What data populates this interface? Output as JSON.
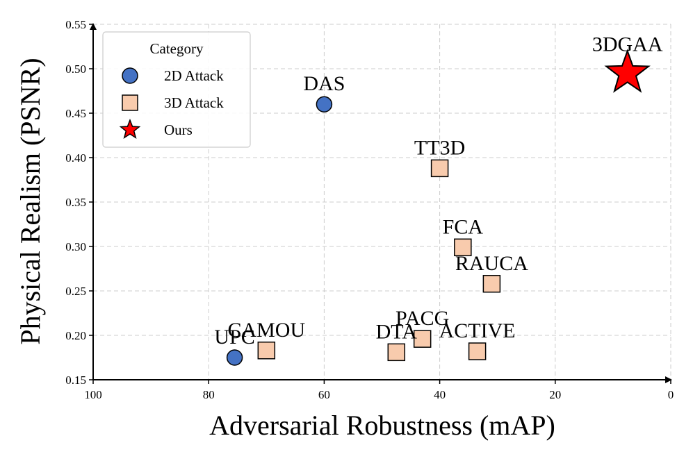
{
  "chart_data": {
    "type": "scatter",
    "xlabel": "Adversarial Robustness (mAP)",
    "ylabel": "Physical Realism (PSNR)",
    "xlim": [
      100,
      0
    ],
    "ylim": [
      0.15,
      0.55
    ],
    "x_ticks": [
      "100",
      "80",
      "60",
      "40",
      "20",
      "0"
    ],
    "x_tick_values": [
      100,
      80,
      60,
      40,
      20,
      0
    ],
    "y_ticks": [
      "0.15",
      "0.20",
      "0.25",
      "0.30",
      "0.35",
      "0.40",
      "0.45",
      "0.50",
      "0.55"
    ],
    "y_tick_values": [
      0.15,
      0.2,
      0.25,
      0.3,
      0.35,
      0.4,
      0.45,
      0.5,
      0.55
    ],
    "grid": true,
    "legend": {
      "title": "Category",
      "placement": "top-left",
      "entries": [
        {
          "label": "2D Attack",
          "marker": "circle"
        },
        {
          "label": "3D Attack",
          "marker": "square"
        },
        {
          "label": "Ours",
          "marker": "star"
        }
      ]
    },
    "series": [
      {
        "name": "2D Attack",
        "marker": "circle",
        "color": "#4472c4",
        "points": [
          {
            "label": "DAS",
            "x": 60,
            "y": 0.46
          },
          {
            "label": "UPC",
            "x": 75.5,
            "y": 0.175
          }
        ]
      },
      {
        "name": "3D Attack",
        "marker": "square",
        "color": "#f8cbad",
        "points": [
          {
            "label": "TT3D",
            "x": 40,
            "y": 0.388
          },
          {
            "label": "FCA",
            "x": 36,
            "y": 0.299
          },
          {
            "label": "RAUCA",
            "x": 31,
            "y": 0.258
          },
          {
            "label": "CAMOU",
            "x": 70,
            "y": 0.183
          },
          {
            "label": "DTA",
            "x": 47.5,
            "y": 0.181
          },
          {
            "label": "PACG",
            "x": 43,
            "y": 0.196
          },
          {
            "label": "ACTIVE",
            "x": 33.5,
            "y": 0.182
          }
        ]
      },
      {
        "name": "Ours",
        "marker": "star",
        "color": "#ff0000",
        "points": [
          {
            "label": "3DGAA",
            "x": 7.5,
            "y": 0.495
          }
        ]
      }
    ]
  }
}
